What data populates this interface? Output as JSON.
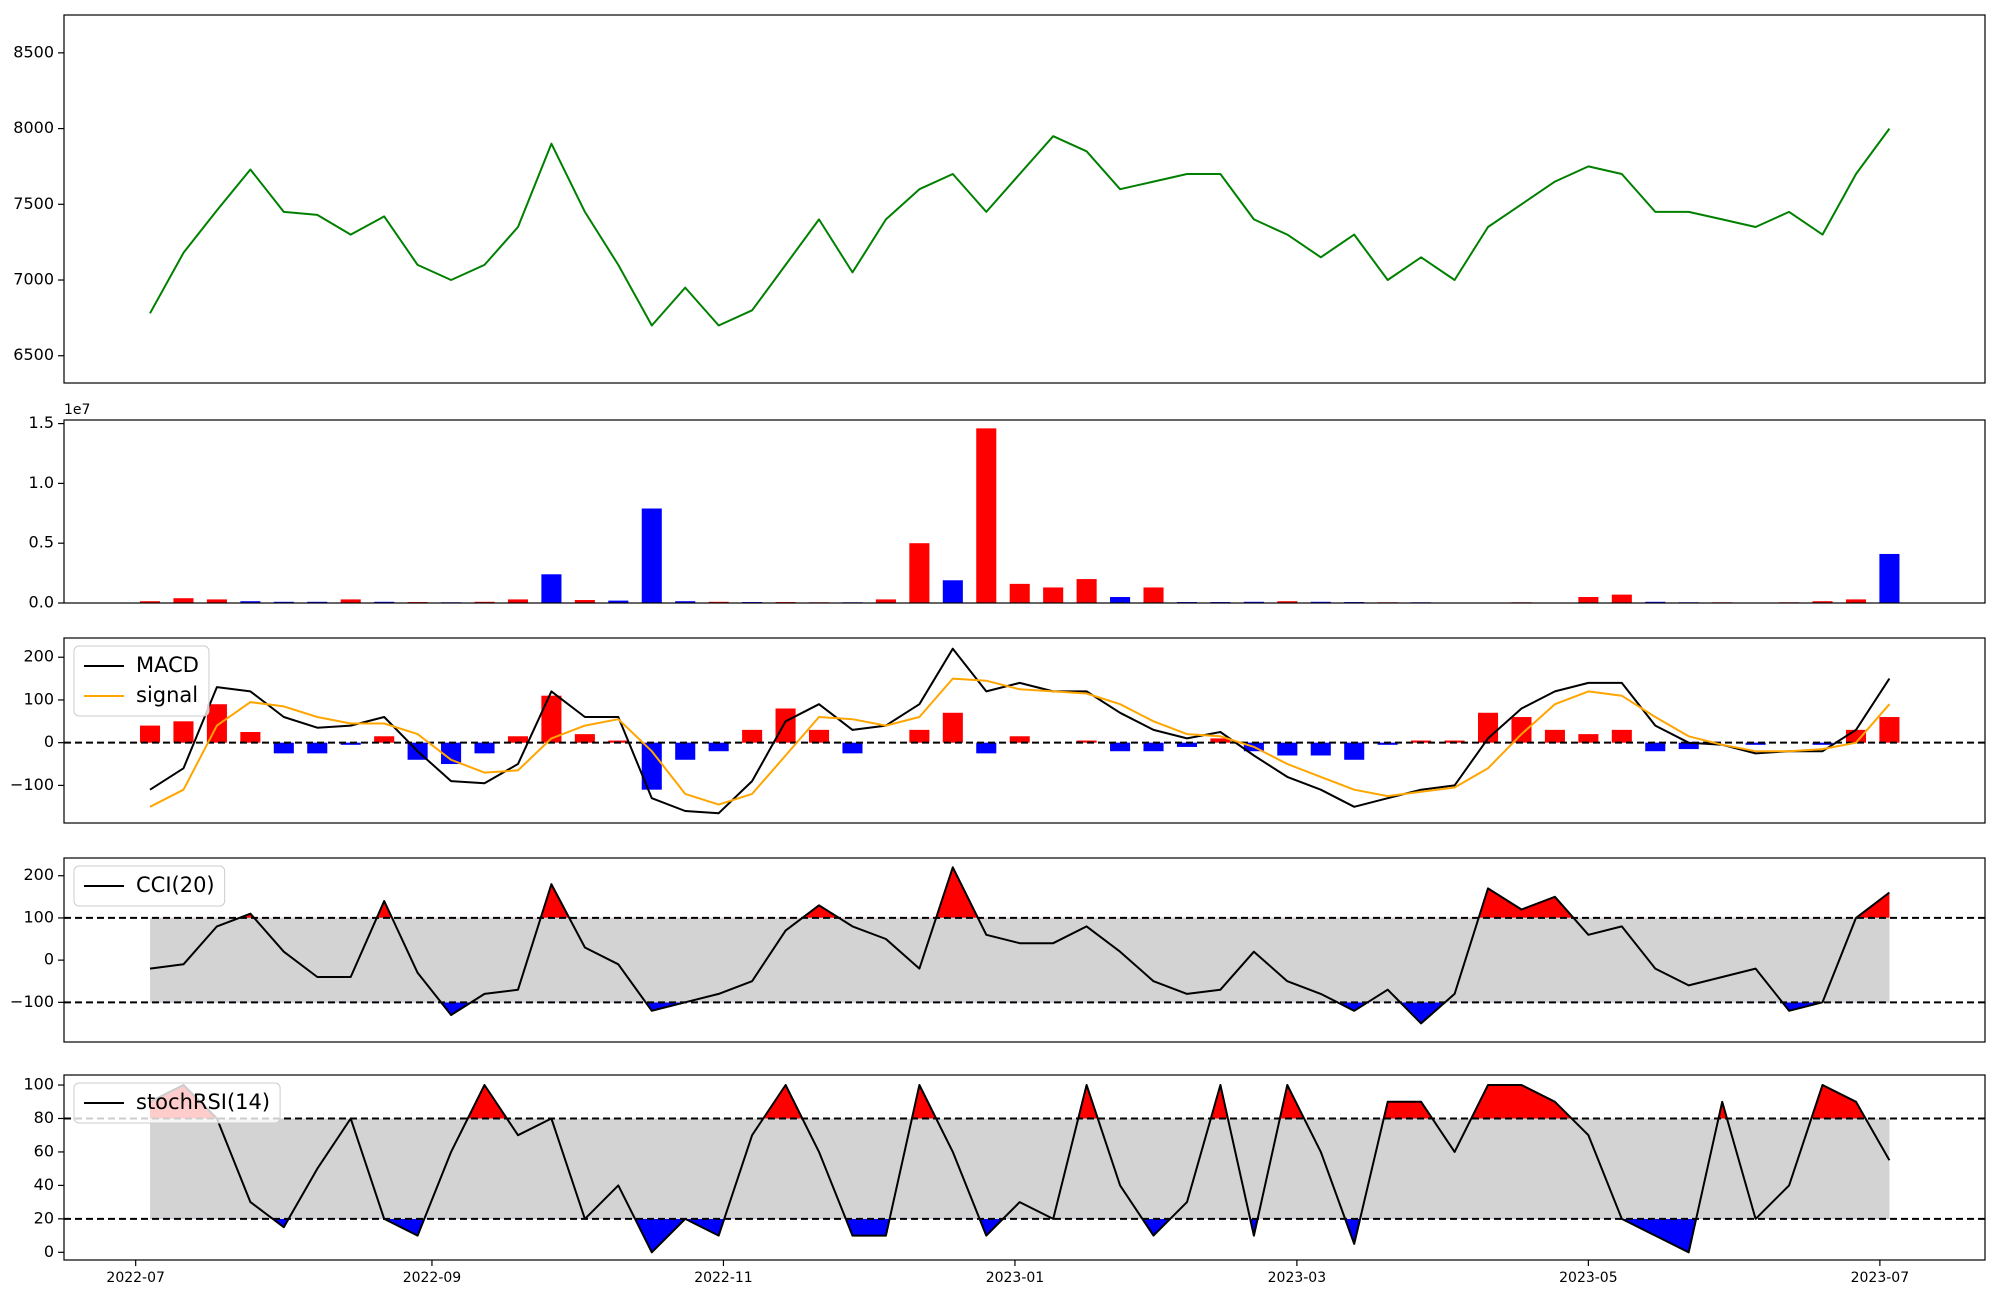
{
  "chart_data": [
    {
      "type": "line",
      "x": [
        "2022-07-04",
        "2022-07-11",
        "2022-07-18",
        "2022-07-25",
        "2022-08-01",
        "2022-08-08",
        "2022-08-15",
        "2022-08-22",
        "2022-08-29",
        "2022-09-05",
        "2022-09-12",
        "2022-09-19",
        "2022-09-26",
        "2022-10-03",
        "2022-10-10",
        "2022-10-17",
        "2022-10-24",
        "2022-10-31",
        "2022-11-07",
        "2022-11-14",
        "2022-11-21",
        "2022-11-28",
        "2022-12-05",
        "2022-12-12",
        "2022-12-19",
        "2022-12-26",
        "2023-01-02",
        "2023-01-09",
        "2023-01-16",
        "2023-01-23",
        "2023-01-30",
        "2023-02-06",
        "2023-02-13",
        "2023-02-20",
        "2023-02-27",
        "2023-03-06",
        "2023-03-13",
        "2023-03-20",
        "2023-03-27",
        "2023-04-03",
        "2023-04-10",
        "2023-04-17",
        "2023-04-24",
        "2023-05-01",
        "2023-05-08",
        "2023-05-15",
        "2023-05-22",
        "2023-05-29",
        "2023-06-05",
        "2023-06-12",
        "2023-06-19",
        "2023-06-26",
        "2023-07-03"
      ],
      "xlim": [
        "2022-06-16",
        "2023-07-23"
      ],
      "series": [
        {
          "color": "green",
          "values": [
            6780,
            7180,
            7460,
            7730,
            7450,
            7430,
            7300,
            7420,
            7100,
            7000,
            7100,
            7350,
            7900,
            7450,
            7100,
            6700,
            6950,
            6700,
            6800,
            7100,
            7400,
            7050,
            7400,
            7600,
            7700,
            7450,
            7700,
            7950,
            7850,
            7600,
            7650,
            7700,
            7700,
            7400,
            7300,
            7150,
            7300,
            7000,
            7150,
            7000,
            7350,
            7500,
            7650,
            7750,
            7700,
            7450,
            7450,
            7400,
            7350,
            7450,
            7300,
            7700,
            8000
          ]
        }
      ],
      "ylim": [
        6320,
        8750
      ],
      "yticks": [
        6500,
        7000,
        7500,
        8000,
        8500
      ]
    },
    {
      "type": "bar",
      "x": [
        "2022-07-04",
        "2022-07-11",
        "2022-07-18",
        "2022-07-25",
        "2022-08-01",
        "2022-08-08",
        "2022-08-15",
        "2022-08-22",
        "2022-08-29",
        "2022-09-05",
        "2022-09-12",
        "2022-09-19",
        "2022-09-26",
        "2022-10-03",
        "2022-10-10",
        "2022-10-17",
        "2022-10-24",
        "2022-10-31",
        "2022-11-07",
        "2022-11-14",
        "2022-11-21",
        "2022-11-28",
        "2022-12-05",
        "2022-12-12",
        "2022-12-19",
        "2022-12-26",
        "2023-01-02",
        "2023-01-09",
        "2023-01-16",
        "2023-01-23",
        "2023-01-30",
        "2023-02-06",
        "2023-02-13",
        "2023-02-20",
        "2023-02-27",
        "2023-03-06",
        "2023-03-13",
        "2023-03-20",
        "2023-03-27",
        "2023-04-03",
        "2023-04-10",
        "2023-04-17",
        "2023-04-24",
        "2023-05-01",
        "2023-05-08",
        "2023-05-15",
        "2023-05-22",
        "2023-05-29",
        "2023-06-05",
        "2023-06-12",
        "2023-06-19",
        "2023-06-26",
        "2023-07-03"
      ],
      "xlim": [
        "2022-06-16",
        "2023-07-23"
      ],
      "values": [
        150000,
        400000,
        300000,
        150000,
        100000,
        100000,
        300000,
        100000,
        80000,
        60000,
        100000,
        300000,
        2400000,
        250000,
        200000,
        7900000,
        150000,
        100000,
        80000,
        80000,
        60000,
        60000,
        300000,
        5000000,
        1900000,
        14600000,
        1600000,
        1300000,
        2000000,
        500000,
        1300000,
        80000,
        80000,
        100000,
        150000,
        100000,
        80000,
        60000,
        60000,
        40000,
        40000,
        60000,
        40000,
        500000,
        700000,
        100000,
        60000,
        60000,
        40000,
        60000,
        150000,
        300000,
        4100000
      ],
      "colors": [
        "red",
        "red",
        "red",
        "blue",
        "blue",
        "blue",
        "red",
        "blue",
        "red",
        "blue",
        "red",
        "red",
        "blue",
        "red",
        "blue",
        "blue",
        "blue",
        "red",
        "blue",
        "red",
        "red",
        "blue",
        "red",
        "red",
        "blue",
        "red",
        "red",
        "red",
        "red",
        "blue",
        "red",
        "blue",
        "blue",
        "blue",
        "red",
        "blue",
        "blue",
        "red",
        "blue",
        "red",
        "blue",
        "red",
        "blue",
        "red",
        "red",
        "blue",
        "blue",
        "red",
        "blue",
        "red",
        "red",
        "red",
        "blue"
      ],
      "ylim": [
        0,
        15300000
      ],
      "yticks": [
        {
          "value": 0,
          "label": "0.0"
        },
        {
          "value": 5000000,
          "label": "0.5"
        },
        {
          "value": 10000000,
          "label": "1.0"
        },
        {
          "value": 15000000,
          "label": "1.5"
        }
      ],
      "offset_text": "1e7"
    },
    {
      "type": "macd",
      "x": [
        "2022-07-04",
        "2022-07-11",
        "2022-07-18",
        "2022-07-25",
        "2022-08-01",
        "2022-08-08",
        "2022-08-15",
        "2022-08-22",
        "2022-08-29",
        "2022-09-05",
        "2022-09-12",
        "2022-09-19",
        "2022-09-26",
        "2022-10-03",
        "2022-10-10",
        "2022-10-17",
        "2022-10-24",
        "2022-10-31",
        "2022-11-07",
        "2022-11-14",
        "2022-11-21",
        "2022-11-28",
        "2022-12-05",
        "2022-12-12",
        "2022-12-19",
        "2022-12-26",
        "2023-01-02",
        "2023-01-09",
        "2023-01-16",
        "2023-01-23",
        "2023-01-30",
        "2023-02-06",
        "2023-02-13",
        "2023-02-20",
        "2023-02-27",
        "2023-03-06",
        "2023-03-13",
        "2023-03-20",
        "2023-03-27",
        "2023-04-03",
        "2023-04-10",
        "2023-04-17",
        "2023-04-24",
        "2023-05-01",
        "2023-05-08",
        "2023-05-15",
        "2023-05-22",
        "2023-05-29",
        "2023-06-05",
        "2023-06-12",
        "2023-06-19",
        "2023-06-26",
        "2023-07-03"
      ],
      "xlim": [
        "2022-06-16",
        "2023-07-23"
      ],
      "series": [
        {
          "name": "MACD",
          "color": "black",
          "values": [
            -110,
            -60,
            130,
            120,
            60,
            35,
            40,
            60,
            -20,
            -90,
            -95,
            -50,
            120,
            60,
            60,
            -130,
            -160,
            -165,
            -90,
            50,
            90,
            30,
            40,
            90,
            220,
            120,
            140,
            120,
            120,
            70,
            30,
            10,
            25,
            -30,
            -80,
            -110,
            -150,
            -130,
            -110,
            -100,
            10,
            80,
            120,
            140,
            140,
            40,
            0,
            -5,
            -25,
            -20,
            -20,
            30,
            150
          ]
        },
        {
          "name": "signal",
          "color": "orange",
          "values": [
            -150,
            -110,
            40,
            95,
            85,
            60,
            45,
            45,
            20,
            -40,
            -70,
            -65,
            10,
            40,
            55,
            -20,
            -120,
            -145,
            -120,
            -30,
            60,
            55,
            40,
            60,
            150,
            145,
            125,
            120,
            115,
            90,
            50,
            20,
            15,
            -10,
            -50,
            -80,
            -110,
            -125,
            -115,
            -105,
            -60,
            20,
            90,
            120,
            110,
            60,
            15,
            -5,
            -20,
            -20,
            -15,
            0,
            90
          ]
        }
      ],
      "histogram": {
        "values": [
          40,
          50,
          90,
          25,
          -25,
          -25,
          -5,
          15,
          -40,
          -50,
          -25,
          15,
          110,
          20,
          5,
          -110,
          -40,
          -20,
          30,
          80,
          30,
          -25,
          0,
          30,
          70,
          -25,
          15,
          0,
          5,
          -20,
          -20,
          -10,
          10,
          -20,
          -30,
          -30,
          -40,
          -5,
          5,
          5,
          70,
          60,
          30,
          20,
          30,
          -20,
          -15,
          0,
          -5,
          0,
          -5,
          30,
          60
        ],
        "up_color": "red",
        "down_color": "blue"
      },
      "hlines": [
        0
      ],
      "ylim": [
        -188,
        245
      ],
      "yticks": [
        {
          "value": -100,
          "label": "−100"
        },
        0,
        100,
        200
      ],
      "legend": "upper left"
    },
    {
      "type": "band",
      "x": [
        "2022-07-04",
        "2022-07-11",
        "2022-07-18",
        "2022-07-25",
        "2022-08-01",
        "2022-08-08",
        "2022-08-15",
        "2022-08-22",
        "2022-08-29",
        "2022-09-05",
        "2022-09-12",
        "2022-09-19",
        "2022-09-26",
        "2022-10-03",
        "2022-10-10",
        "2022-10-17",
        "2022-10-24",
        "2022-10-31",
        "2022-11-07",
        "2022-11-14",
        "2022-11-21",
        "2022-11-28",
        "2022-12-05",
        "2022-12-12",
        "2022-12-19",
        "2022-12-26",
        "2023-01-02",
        "2023-01-09",
        "2023-01-16",
        "2023-01-23",
        "2023-01-30",
        "2023-02-06",
        "2023-02-13",
        "2023-02-20",
        "2023-02-27",
        "2023-03-06",
        "2023-03-13",
        "2023-03-20",
        "2023-03-27",
        "2023-04-03",
        "2023-04-10",
        "2023-04-17",
        "2023-04-24",
        "2023-05-01",
        "2023-05-08",
        "2023-05-15",
        "2023-05-22",
        "2023-05-29",
        "2023-06-05",
        "2023-06-12",
        "2023-06-19",
        "2023-06-26",
        "2023-07-03"
      ],
      "xlim": [
        "2022-06-16",
        "2023-07-23"
      ],
      "series": [
        {
          "name": "CCI(20)",
          "color": "black",
          "values": [
            -20,
            -10,
            80,
            110,
            20,
            -40,
            -40,
            140,
            -30,
            -130,
            -80,
            -70,
            180,
            30,
            -10,
            -120,
            -100,
            -80,
            -50,
            70,
            130,
            80,
            50,
            -20,
            220,
            60,
            40,
            40,
            80,
            20,
            -50,
            -80,
            -70,
            20,
            -50,
            -80,
            -120,
            -70,
            -150,
            -80,
            170,
            120,
            150,
            60,
            80,
            -20,
            -60,
            -40,
            -20,
            -120,
            -100,
            100,
            160
          ]
        }
      ],
      "band": [
        -100,
        100
      ],
      "band_color": "lightgray",
      "above_color": "red",
      "below_color": "blue",
      "ylim": [
        -194,
        242
      ],
      "yticks": [
        {
          "value": -100,
          "label": "−100"
        },
        0,
        100,
        200
      ],
      "legend": "upper left"
    },
    {
      "type": "band",
      "x": [
        "2022-07-04",
        "2022-07-11",
        "2022-07-18",
        "2022-07-25",
        "2022-08-01",
        "2022-08-08",
        "2022-08-15",
        "2022-08-22",
        "2022-08-29",
        "2022-09-05",
        "2022-09-12",
        "2022-09-19",
        "2022-09-26",
        "2022-10-03",
        "2022-10-10",
        "2022-10-17",
        "2022-10-24",
        "2022-10-31",
        "2022-11-07",
        "2022-11-14",
        "2022-11-21",
        "2022-11-28",
        "2022-12-05",
        "2022-12-12",
        "2022-12-19",
        "2022-12-26",
        "2023-01-02",
        "2023-01-09",
        "2023-01-16",
        "2023-01-23",
        "2023-01-30",
        "2023-02-06",
        "2023-02-13",
        "2023-02-20",
        "2023-02-27",
        "2023-03-06",
        "2023-03-13",
        "2023-03-20",
        "2023-03-27",
        "2023-04-03",
        "2023-04-10",
        "2023-04-17",
        "2023-04-24",
        "2023-05-01",
        "2023-05-08",
        "2023-05-15",
        "2023-05-22",
        "2023-05-29",
        "2023-06-05",
        "2023-06-12",
        "2023-06-19",
        "2023-06-26",
        "2023-07-03"
      ],
      "xlim": [
        "2022-06-16",
        "2023-07-23"
      ],
      "series": [
        {
          "name": "stochRSI(14)",
          "color": "black",
          "values": [
            90,
            100,
            80,
            30,
            15,
            50,
            80,
            20,
            10,
            60,
            100,
            70,
            80,
            20,
            40,
            0,
            20,
            10,
            70,
            100,
            60,
            10,
            10,
            100,
            60,
            10,
            30,
            20,
            100,
            40,
            10,
            30,
            100,
            10,
            100,
            60,
            5,
            90,
            90,
            60,
            100,
            100,
            90,
            70,
            20,
            10,
            0,
            90,
            20,
            40,
            100,
            90,
            55
          ]
        }
      ],
      "band": [
        20,
        80
      ],
      "band_color": "lightgray",
      "above_color": "red",
      "below_color": "blue",
      "ylim": [
        -4.6,
        106
      ],
      "yticks": [
        0,
        20,
        40,
        60,
        80,
        100
      ],
      "xticks": [
        {
          "value": "2022-07-01",
          "label": "2022-07"
        },
        {
          "value": "2022-09-01",
          "label": "2022-09"
        },
        {
          "value": "2022-11-01",
          "label": "2022-11"
        },
        {
          "value": "2023-01-01",
          "label": "2023-01"
        },
        {
          "value": "2023-03-01",
          "label": "2023-03"
        },
        {
          "value": "2023-05-01",
          "label": "2023-05"
        },
        {
          "value": "2023-07-01",
          "label": "2023-07"
        }
      ],
      "legend": "upper left"
    }
  ]
}
